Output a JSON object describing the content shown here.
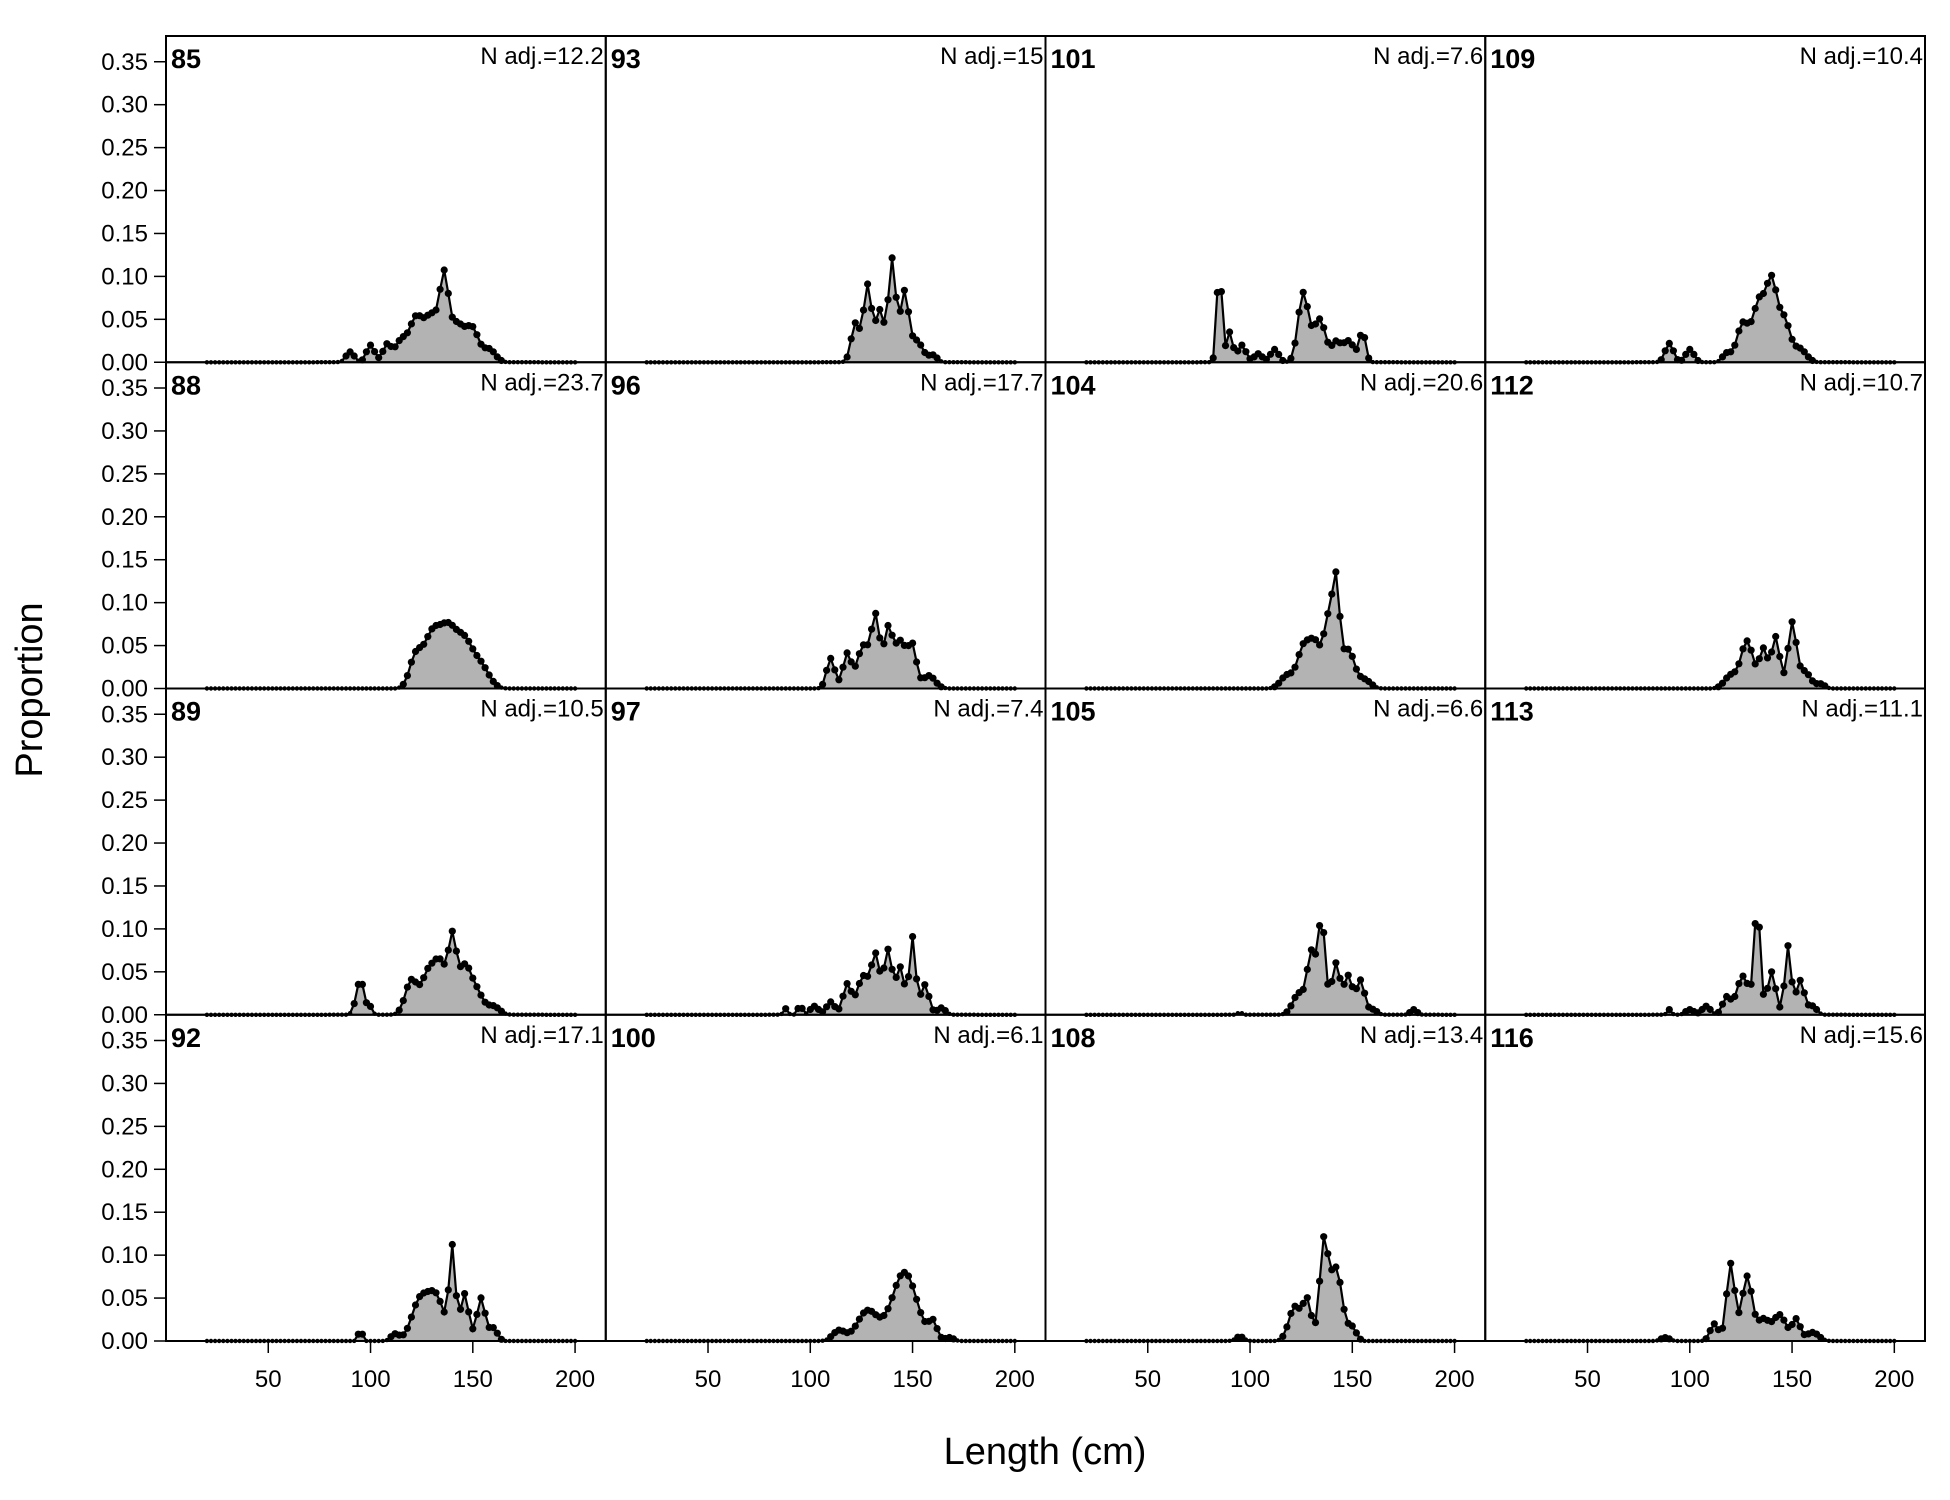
{
  "chart_data": {
    "type": "area",
    "xlabel": "Length (cm)",
    "ylabel": "Proportion",
    "xlim": [
      0,
      215
    ],
    "ylim": [
      0,
      0.38
    ],
    "x_ticks": [
      "50",
      "100",
      "150",
      "200"
    ],
    "y_ticks": [
      "0.00",
      "0.05",
      "0.10",
      "0.15",
      "0.20",
      "0.25",
      "0.30",
      "0.35"
    ],
    "layout": {
      "rows": 4,
      "cols": 4,
      "order": "column-major"
    },
    "x_range": [
      20,
      200
    ],
    "x_step": 2,
    "panels": [
      {
        "id": "85",
        "n_label": "N adj.=12.2",
        "peaks": [
          [
            90,
            0.012,
            2
          ],
          [
            100,
            0.02,
            2
          ],
          [
            108,
            0.02,
            2
          ],
          [
            115,
            0.025,
            3
          ],
          [
            122,
            0.045,
            3
          ],
          [
            130,
            0.055,
            4
          ],
          [
            136,
            0.075,
            2
          ],
          [
            142,
            0.045,
            4
          ],
          [
            150,
            0.035,
            3
          ],
          [
            158,
            0.015,
            3
          ]
        ]
      },
      {
        "id": "88",
        "n_label": "N adj.=23.7",
        "peaks": [
          [
            122,
            0.035,
            3
          ],
          [
            130,
            0.06,
            4
          ],
          [
            138,
            0.062,
            4
          ],
          [
            146,
            0.05,
            4
          ],
          [
            154,
            0.025,
            4
          ]
        ]
      },
      {
        "id": "89",
        "n_label": "N adj.=10.5",
        "peaks": [
          [
            95,
            0.04,
            2
          ],
          [
            100,
            0.008,
            1
          ],
          [
            120,
            0.04,
            3
          ],
          [
            128,
            0.045,
            3
          ],
          [
            134,
            0.058,
            3
          ],
          [
            140,
            0.082,
            2
          ],
          [
            146,
            0.055,
            3
          ],
          [
            152,
            0.025,
            3
          ],
          [
            160,
            0.01,
            3
          ]
        ]
      },
      {
        "id": "92",
        "n_label": "N adj.=17.1",
        "peaks": [
          [
            95,
            0.013,
            1
          ],
          [
            112,
            0.008,
            2
          ],
          [
            124,
            0.045,
            4
          ],
          [
            132,
            0.05,
            4
          ],
          [
            140,
            0.105,
            1.5
          ],
          [
            146,
            0.055,
            2
          ],
          [
            154,
            0.05,
            2
          ],
          [
            160,
            0.015,
            2
          ]
        ]
      },
      {
        "id": "93",
        "n_label": "N adj.=15",
        "peaks": [
          [
            122,
            0.045,
            2
          ],
          [
            128,
            0.09,
            2
          ],
          [
            134,
            0.06,
            2
          ],
          [
            140,
            0.12,
            1.8
          ],
          [
            146,
            0.08,
            2
          ],
          [
            152,
            0.025,
            3
          ],
          [
            160,
            0.008,
            2
          ]
        ]
      },
      {
        "id": "96",
        "n_label": "N adj.=17.7",
        "peaks": [
          [
            110,
            0.035,
            2
          ],
          [
            118,
            0.04,
            2
          ],
          [
            126,
            0.05,
            3
          ],
          [
            132,
            0.08,
            2
          ],
          [
            138,
            0.065,
            2
          ],
          [
            144,
            0.055,
            3
          ],
          [
            150,
            0.045,
            2
          ],
          [
            158,
            0.015,
            3
          ]
        ]
      },
      {
        "id": "97",
        "n_label": "N adj.=7.4",
        "peaks": [
          [
            88,
            0.007,
            1
          ],
          [
            95,
            0.012,
            1
          ],
          [
            102,
            0.01,
            2
          ],
          [
            110,
            0.015,
            2
          ],
          [
            118,
            0.035,
            2
          ],
          [
            126,
            0.045,
            3
          ],
          [
            132,
            0.065,
            2
          ],
          [
            138,
            0.075,
            2
          ],
          [
            144,
            0.055,
            2
          ],
          [
            150,
            0.09,
            1.5
          ],
          [
            156,
            0.035,
            2
          ],
          [
            164,
            0.008,
            2
          ]
        ]
      },
      {
        "id": "100",
        "n_label": "N adj.=6.1",
        "peaks": [
          [
            114,
            0.012,
            3
          ],
          [
            128,
            0.035,
            5
          ],
          [
            146,
            0.08,
            6
          ],
          [
            160,
            0.02,
            2
          ],
          [
            168,
            0.004,
            2
          ]
        ]
      },
      {
        "id": "101",
        "n_label": "N adj.=7.6",
        "peaks": [
          [
            85,
            0.115,
            1.2
          ],
          [
            90,
            0.035,
            1.5
          ],
          [
            96,
            0.02,
            2
          ],
          [
            104,
            0.01,
            2
          ],
          [
            112,
            0.015,
            2
          ],
          [
            126,
            0.08,
            2.5
          ],
          [
            134,
            0.05,
            3
          ],
          [
            142,
            0.02,
            2
          ],
          [
            148,
            0.025,
            3
          ],
          [
            155,
            0.035,
            1.5
          ]
        ]
      },
      {
        "id": "104",
        "n_label": "N adj.=20.6",
        "peaks": [
          [
            118,
            0.015,
            3
          ],
          [
            126,
            0.045,
            3
          ],
          [
            132,
            0.05,
            3
          ],
          [
            138,
            0.07,
            2
          ],
          [
            142,
            0.12,
            1.8
          ],
          [
            148,
            0.045,
            3
          ],
          [
            156,
            0.01,
            3
          ]
        ]
      },
      {
        "id": "105",
        "n_label": "N adj.=6.6",
        "peaks": [
          [
            95,
            0.003,
            1
          ],
          [
            124,
            0.025,
            3
          ],
          [
            130,
            0.07,
            2
          ],
          [
            135,
            0.11,
            1.8
          ],
          [
            142,
            0.06,
            2
          ],
          [
            148,
            0.045,
            2
          ],
          [
            154,
            0.04,
            2
          ],
          [
            160,
            0.006,
            2
          ],
          [
            180,
            0.006,
            1.5
          ]
        ]
      },
      {
        "id": "108",
        "n_label": "N adj.=13.4",
        "peaks": [
          [
            95,
            0.005,
            2
          ],
          [
            122,
            0.04,
            3
          ],
          [
            128,
            0.045,
            2
          ],
          [
            136,
            0.11,
            2
          ],
          [
            142,
            0.085,
            3
          ],
          [
            150,
            0.015,
            2
          ]
        ]
      },
      {
        "id": "109",
        "n_label": "N adj.=10.4",
        "peaks": [
          [
            90,
            0.022,
            2
          ],
          [
            100,
            0.015,
            2
          ],
          [
            118,
            0.01,
            2
          ],
          [
            126,
            0.045,
            3
          ],
          [
            134,
            0.07,
            3
          ],
          [
            140,
            0.085,
            2.5
          ],
          [
            146,
            0.05,
            3
          ],
          [
            154,
            0.015,
            3
          ]
        ]
      },
      {
        "id": "112",
        "n_label": "N adj.=10.7",
        "peaks": [
          [
            120,
            0.015,
            3
          ],
          [
            128,
            0.055,
            3
          ],
          [
            136,
            0.045,
            2
          ],
          [
            142,
            0.06,
            2
          ],
          [
            150,
            0.075,
            2
          ],
          [
            156,
            0.02,
            3
          ],
          [
            164,
            0.005,
            2
          ]
        ]
      },
      {
        "id": "113",
        "n_label": "N adj.=11.1",
        "peaks": [
          [
            90,
            0.006,
            1
          ],
          [
            100,
            0.006,
            2
          ],
          [
            108,
            0.01,
            2
          ],
          [
            118,
            0.02,
            2
          ],
          [
            126,
            0.045,
            3
          ],
          [
            133,
            0.125,
            1.5
          ],
          [
            140,
            0.05,
            2
          ],
          [
            148,
            0.08,
            1.5
          ],
          [
            154,
            0.04,
            2
          ],
          [
            160,
            0.01,
            2
          ]
        ]
      },
      {
        "id": "116",
        "n_label": "N adj.=15.6",
        "peaks": [
          [
            88,
            0.004,
            2
          ],
          [
            112,
            0.02,
            2
          ],
          [
            120,
            0.09,
            2
          ],
          [
            128,
            0.075,
            2.5
          ],
          [
            136,
            0.025,
            3
          ],
          [
            144,
            0.03,
            3
          ],
          [
            152,
            0.025,
            2
          ],
          [
            160,
            0.01,
            3
          ]
        ]
      }
    ]
  },
  "style": {
    "fill": "#b3b3b3",
    "line": "#000000",
    "point": "#000000"
  }
}
